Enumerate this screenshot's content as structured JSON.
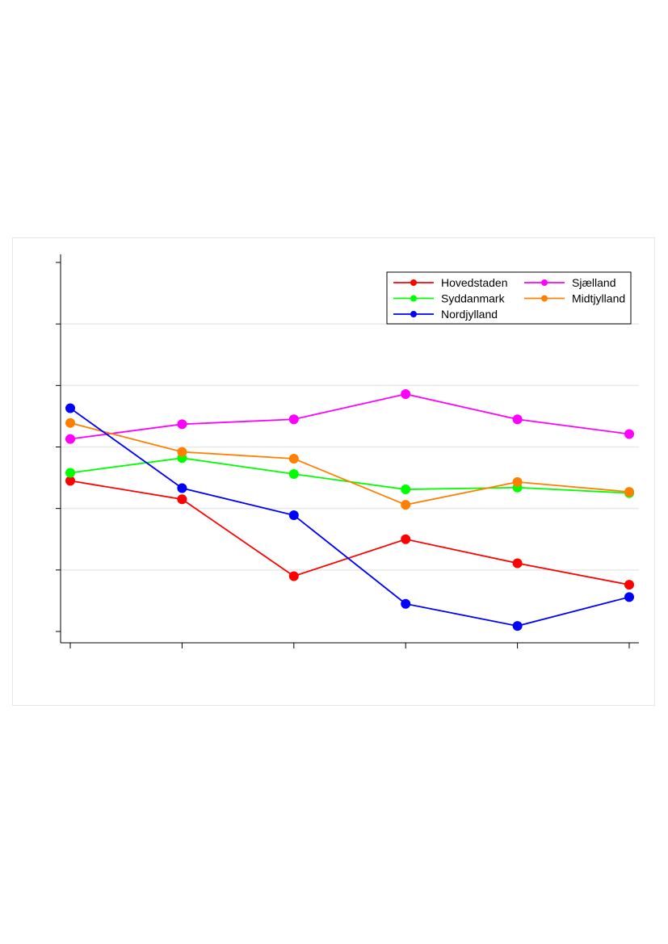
{
  "chart_data": {
    "type": "line",
    "title": "",
    "xlabel": "",
    "ylabel": "",
    "x": [
      1,
      2,
      3,
      4,
      5,
      6
    ],
    "ylim": [
      0,
      6
    ],
    "yticks": [
      0,
      1,
      2,
      3,
      4,
      5,
      6
    ],
    "grid": true,
    "legend_position": "top-right",
    "series": [
      {
        "name": "Hovedstaden",
        "color": "#ff0000",
        "values": [
          2.45,
          2.15,
          0.9,
          1.5,
          1.11,
          0.76
        ]
      },
      {
        "name": "Sjælland",
        "color": "#ff00ff",
        "values": [
          3.13,
          3.37,
          3.45,
          3.86,
          3.45,
          3.21
        ]
      },
      {
        "name": "Syddanmark",
        "color": "#00ff00",
        "values": [
          2.58,
          2.82,
          2.56,
          2.31,
          2.34,
          2.25
        ]
      },
      {
        "name": "Midtjylland",
        "color": "#ff8000",
        "values": [
          3.39,
          2.92,
          2.81,
          2.06,
          2.43,
          2.27
        ]
      },
      {
        "name": "Nordjylland",
        "color": "#0000ff",
        "values": [
          3.63,
          2.33,
          1.89,
          0.45,
          0.09,
          0.56
        ]
      }
    ]
  }
}
